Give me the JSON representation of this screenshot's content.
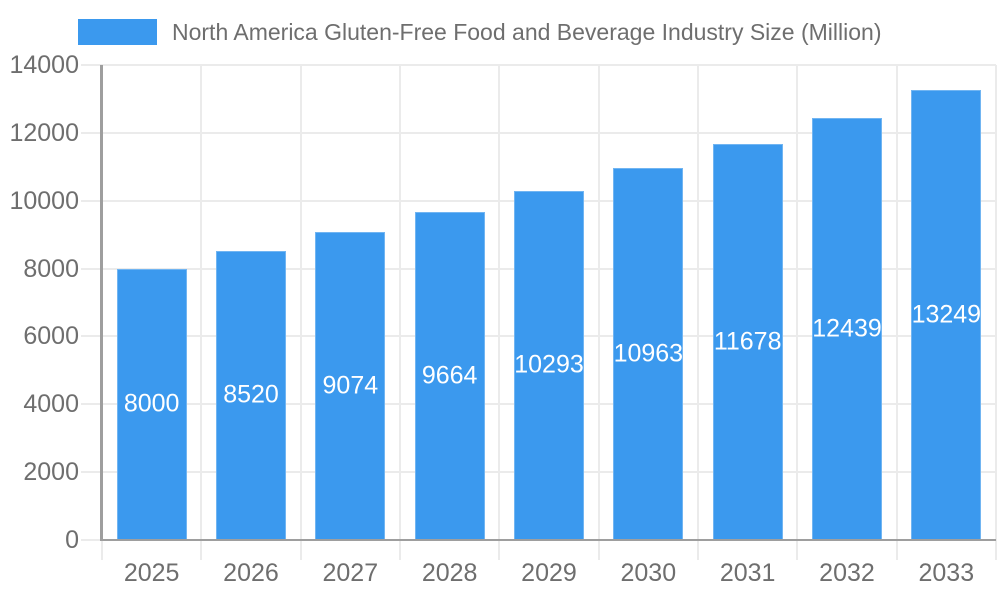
{
  "legend": {
    "label": "North America Gluten-Free Food and Beverage Industry Size (Million)"
  },
  "chart_data": {
    "type": "bar",
    "title": "North America Gluten-Free Food and Beverage Industry Size (Million)",
    "categories": [
      "2025",
      "2026",
      "2027",
      "2028",
      "2029",
      "2030",
      "2031",
      "2032",
      "2033"
    ],
    "series": [
      {
        "name": "North America Gluten-Free Food and Beverage Industry Size (Million)",
        "values": [
          8000,
          8520,
          9074,
          9664,
          10293,
          10963,
          11678,
          12439,
          13249
        ]
      }
    ],
    "bar_value_labels": [
      "8000",
      "8520",
      "9074",
      "9664",
      "10293",
      "10963",
      "11678",
      "12439",
      "13249"
    ],
    "xlabel": "",
    "ylabel": "",
    "ylim": [
      0,
      14000
    ],
    "yticks": [
      0,
      2000,
      4000,
      6000,
      8000,
      10000,
      12000,
      14000
    ],
    "grid": true,
    "legend_position": "top",
    "colors": {
      "bar": "#3B99EE",
      "bar_value_label": "#FFFFFF",
      "axis_text": "#6E6E6E",
      "legend_text": "#6E6E6E",
      "gridline": "#EBEBEB",
      "axis_line": "#9E9E9E",
      "background": "#FFFFFF"
    }
  }
}
